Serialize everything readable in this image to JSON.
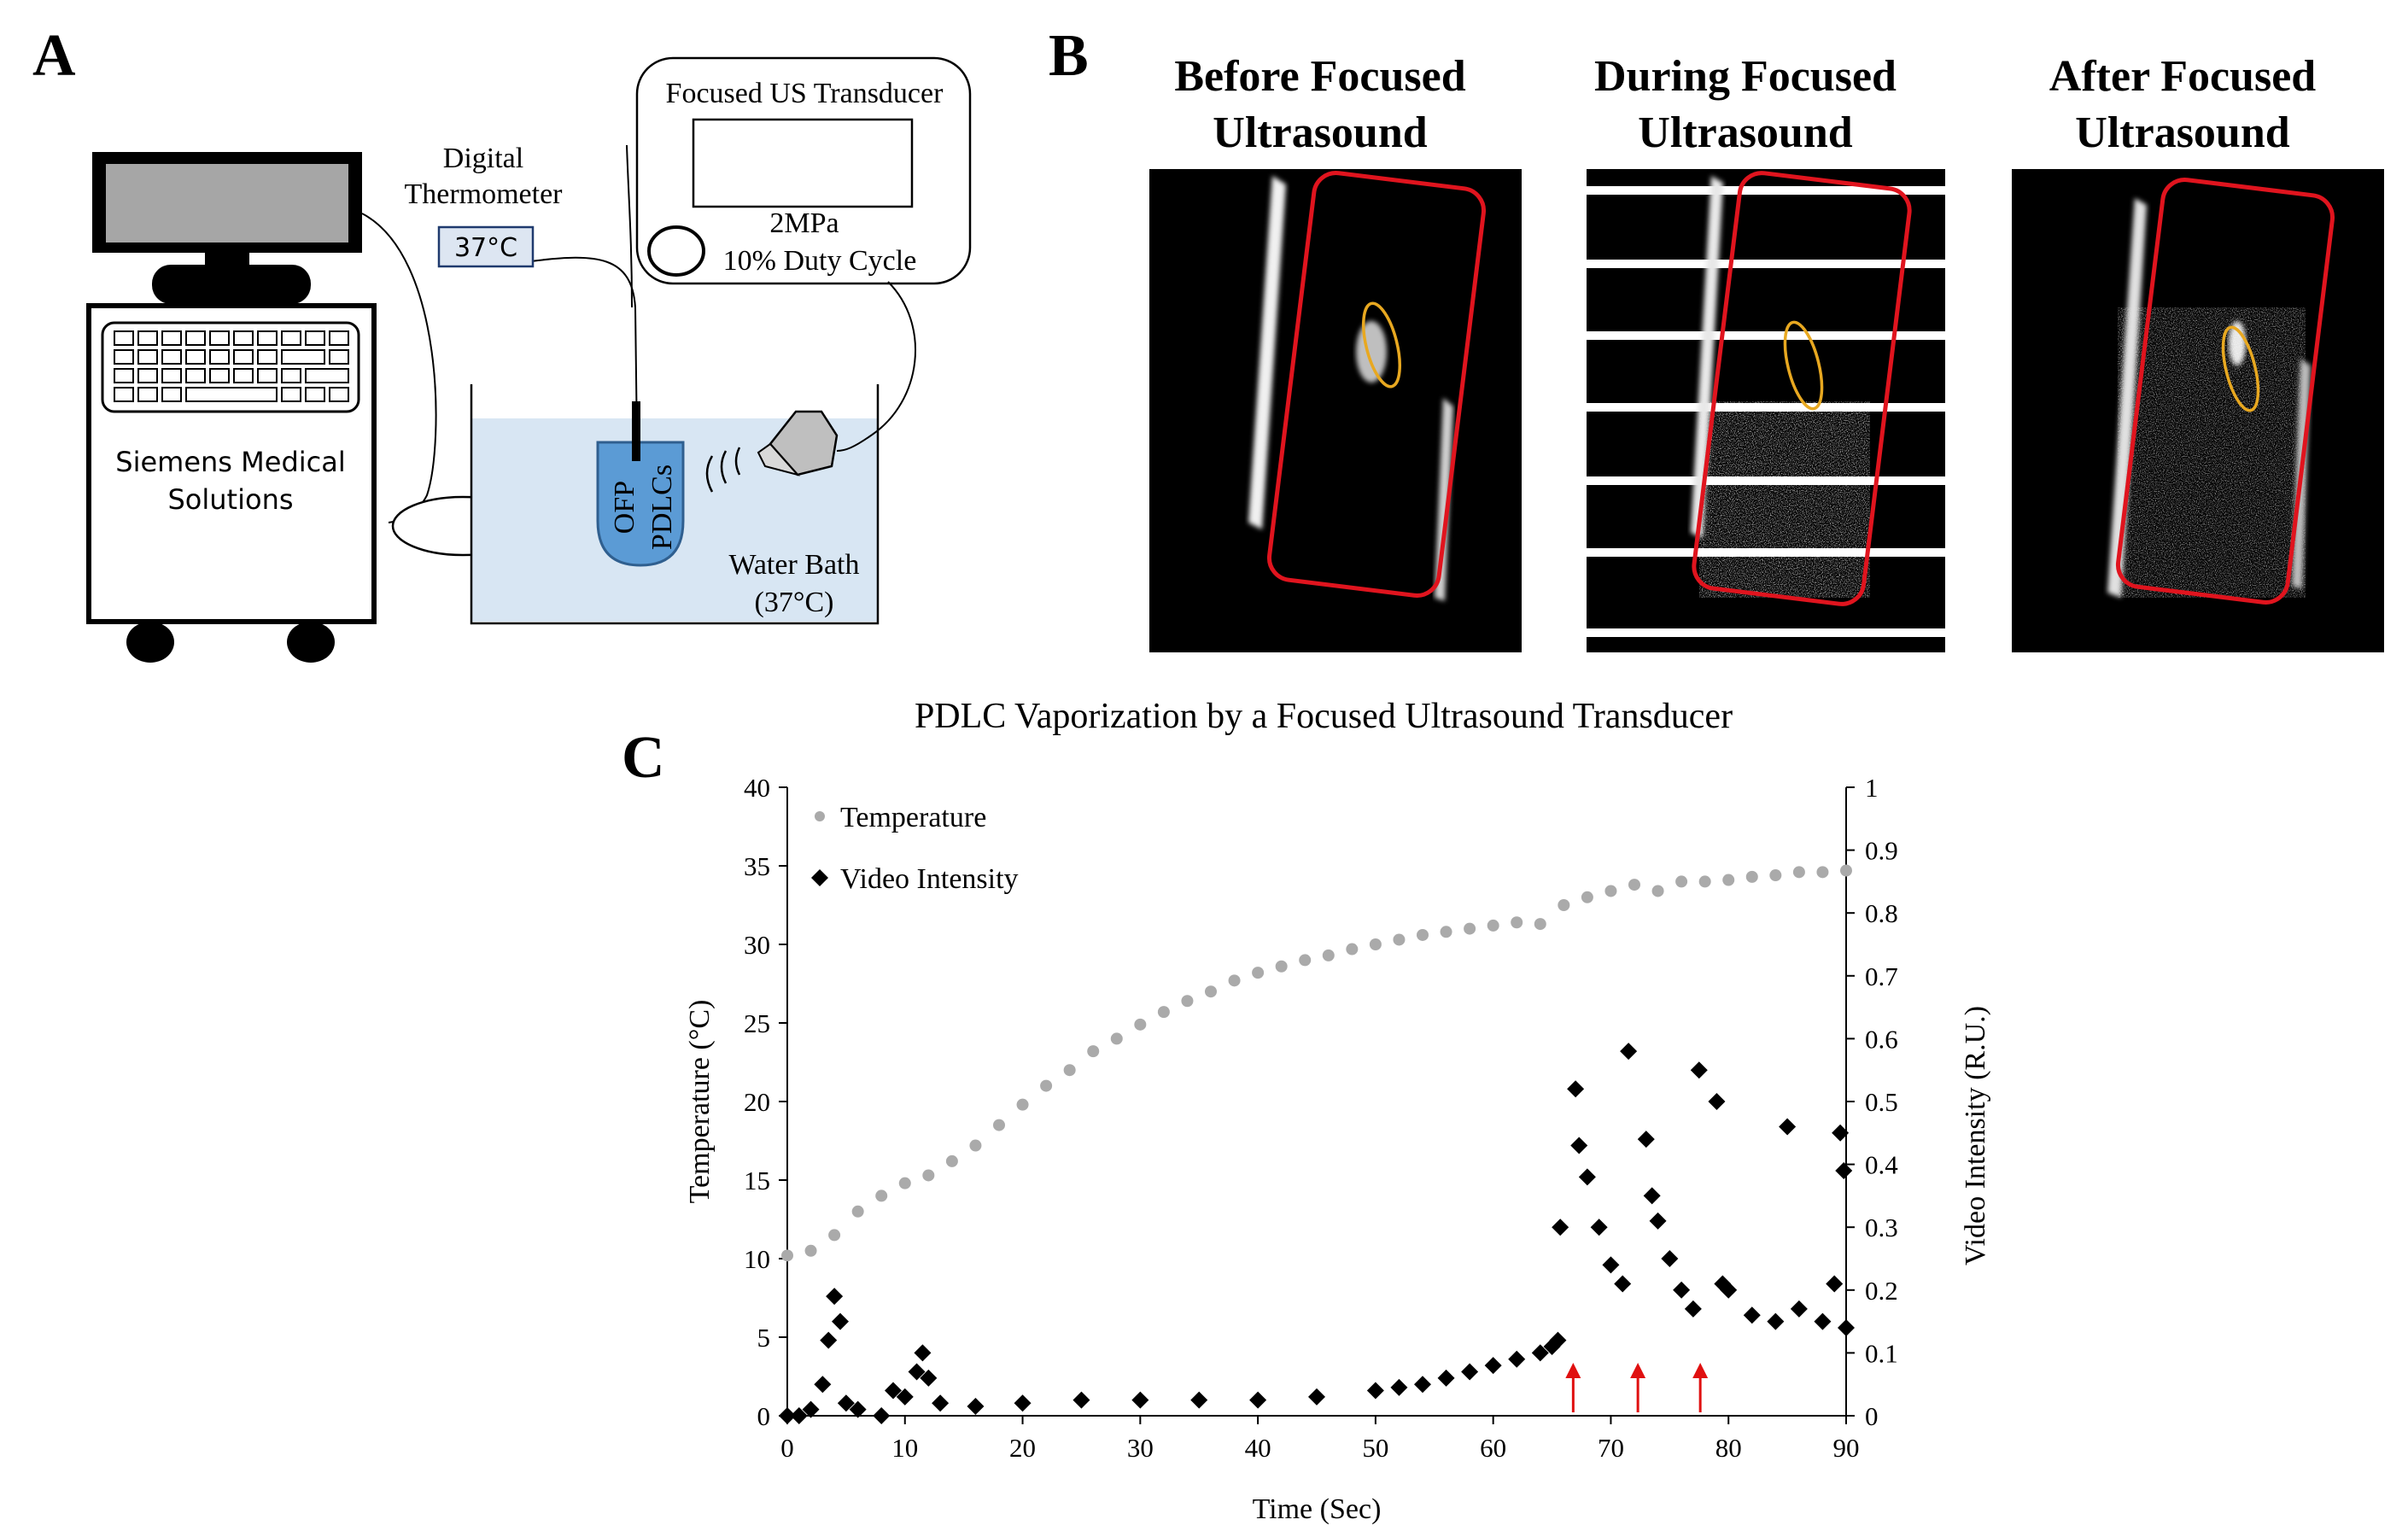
{
  "panels": {
    "a": "A",
    "b": "B",
    "c": "C"
  },
  "diagram": {
    "computer_label_line1": "Siemens Medical",
    "computer_label_line2": "Solutions",
    "thermometer_title_line1": "Digital",
    "thermometer_title_line2": "Thermometer",
    "thermometer_reading": "37°C",
    "transducer_title": "Focused US Transducer",
    "transducer_pressure": "2MPa",
    "transducer_duty": "10% Duty Cycle",
    "sample_line1": "OFP",
    "sample_line2": "PDLCs",
    "bath_line1": "Water Bath",
    "bath_line2": "(37°C)"
  },
  "ultrasound_images": [
    {
      "title_line1": "Before Focused",
      "title_line2": "Ultrasound"
    },
    {
      "title_line1": "During Focused",
      "title_line2": "Ultrasound"
    },
    {
      "title_line1": "After Focused",
      "title_line2": "Ultrasound"
    }
  ],
  "colors": {
    "temperature": "#aaaaaa",
    "intensity": "#000000",
    "roi": "#e0141e",
    "marker": "#e8a820",
    "arrow": "#e01010",
    "water": "#d8e6f3",
    "sample": "#5b9bd5"
  },
  "chart_data": {
    "type": "scatter",
    "title": "PDLC Vaporization by a Focused Ultrasound Transducer",
    "xlabel": "Time (Sec)",
    "ylabel": "Temperature (°C)",
    "y2label": "Video Intensity (R.U.)",
    "xlim": [
      0,
      90
    ],
    "ylim": [
      0,
      40
    ],
    "y2lim": [
      0,
      1
    ],
    "x_ticks": [
      "0",
      "10",
      "20",
      "30",
      "40",
      "50",
      "60",
      "70",
      "80",
      "90"
    ],
    "y_ticks": [
      "0",
      "5",
      "10",
      "15",
      "20",
      "25",
      "30",
      "35",
      "40"
    ],
    "y2_ticks": [
      "0",
      "0.1",
      "0.2",
      "0.3",
      "0.4",
      "0.5",
      "0.6",
      "0.7",
      "0.8",
      "0.9",
      "1"
    ],
    "legend": [
      "Temperature",
      "Video Intensity"
    ],
    "legend_position": "top-left",
    "series": [
      {
        "name": "Temperature",
        "axis": "left",
        "marker": "circle",
        "points": [
          [
            0,
            10.2
          ],
          [
            2,
            10.5
          ],
          [
            4,
            11.5
          ],
          [
            6,
            13.0
          ],
          [
            8,
            14.0
          ],
          [
            10,
            14.8
          ],
          [
            12,
            15.3
          ],
          [
            14,
            16.2
          ],
          [
            16,
            17.2
          ],
          [
            18,
            18.5
          ],
          [
            20,
            19.8
          ],
          [
            22,
            21.0
          ],
          [
            24,
            22.0
          ],
          [
            26,
            23.2
          ],
          [
            28,
            24.0
          ],
          [
            30,
            24.9
          ],
          [
            32,
            25.7
          ],
          [
            34,
            26.4
          ],
          [
            36,
            27.0
          ],
          [
            38,
            27.7
          ],
          [
            40,
            28.2
          ],
          [
            42,
            28.6
          ],
          [
            44,
            29.0
          ],
          [
            46,
            29.3
          ],
          [
            48,
            29.7
          ],
          [
            50,
            30.0
          ],
          [
            52,
            30.3
          ],
          [
            54,
            30.6
          ],
          [
            56,
            30.8
          ],
          [
            58,
            31.0
          ],
          [
            60,
            31.2
          ],
          [
            62,
            31.4
          ],
          [
            64,
            31.3
          ],
          [
            66,
            32.5
          ],
          [
            68,
            33.0
          ],
          [
            70,
            33.4
          ],
          [
            72,
            33.8
          ],
          [
            74,
            33.4
          ],
          [
            76,
            34.0
          ],
          [
            78,
            34.0
          ],
          [
            80,
            34.1
          ],
          [
            82,
            34.3
          ],
          [
            84,
            34.4
          ],
          [
            86,
            34.6
          ],
          [
            88,
            34.6
          ],
          [
            90,
            34.7
          ]
        ]
      },
      {
        "name": "Video Intensity",
        "axis": "right",
        "marker": "diamond",
        "points": [
          [
            0,
            0.0
          ],
          [
            1,
            0.0
          ],
          [
            2,
            0.01
          ],
          [
            3,
            0.05
          ],
          [
            3.5,
            0.12
          ],
          [
            4,
            0.19
          ],
          [
            4.5,
            0.15
          ],
          [
            5,
            0.02
          ],
          [
            6,
            0.01
          ],
          [
            8,
            0.0
          ],
          [
            9,
            0.04
          ],
          [
            10,
            0.03
          ],
          [
            11,
            0.07
          ],
          [
            11.5,
            0.1
          ],
          [
            12,
            0.06
          ],
          [
            13,
            0.02
          ],
          [
            16,
            0.015
          ],
          [
            20,
            0.02
          ],
          [
            25,
            0.025
          ],
          [
            30,
            0.025
          ],
          [
            35,
            0.025
          ],
          [
            40,
            0.025
          ],
          [
            45,
            0.03
          ],
          [
            50,
            0.04
          ],
          [
            52,
            0.045
          ],
          [
            54,
            0.05
          ],
          [
            56,
            0.06
          ],
          [
            58,
            0.07
          ],
          [
            60,
            0.08
          ],
          [
            62,
            0.09
          ],
          [
            64,
            0.1
          ],
          [
            65,
            0.11
          ],
          [
            65.5,
            0.12
          ],
          [
            65.7,
            0.3
          ],
          [
            67,
            0.52
          ],
          [
            67.3,
            0.43
          ],
          [
            68,
            0.38
          ],
          [
            69,
            0.3
          ],
          [
            70,
            0.24
          ],
          [
            71,
            0.21
          ],
          [
            71.5,
            0.58
          ],
          [
            73,
            0.44
          ],
          [
            73.5,
            0.35
          ],
          [
            74,
            0.31
          ],
          [
            75,
            0.25
          ],
          [
            76,
            0.2
          ],
          [
            77,
            0.17
          ],
          [
            77.5,
            0.55
          ],
          [
            79,
            0.5
          ],
          [
            79.5,
            0.21
          ],
          [
            80,
            0.2
          ],
          [
            82,
            0.16
          ],
          [
            84,
            0.15
          ],
          [
            85,
            0.46
          ],
          [
            86,
            0.17
          ],
          [
            88,
            0.15
          ],
          [
            89,
            0.21
          ],
          [
            89.5,
            0.45
          ],
          [
            89.8,
            0.39
          ],
          [
            90,
            0.14
          ]
        ]
      }
    ],
    "arrows_at_x": [
      66.8,
      72.3,
      77.6
    ]
  }
}
